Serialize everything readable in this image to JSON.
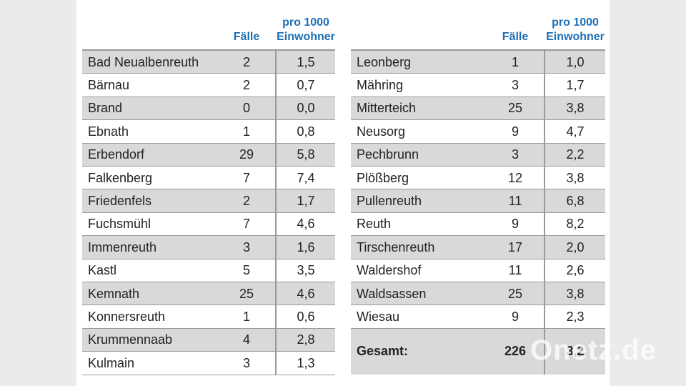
{
  "left_table": {
    "header": [
      "Fälle",
      "pro 1000",
      "Einwohner"
    ],
    "rows": [
      [
        "Bad Neualbenreuth",
        "2",
        "1,5"
      ],
      [
        "Bärnau",
        "2",
        "0,7"
      ],
      [
        "Brand",
        "0",
        "0,0"
      ],
      [
        "Ebnath",
        "1",
        "0,8"
      ],
      [
        "Erbendorf",
        "29",
        "5,8"
      ],
      [
        "Falkenberg",
        "7",
        "7,4"
      ],
      [
        "Friedenfels",
        "2",
        "1,7"
      ],
      [
        "Fuchsmühl",
        "7",
        "4,6"
      ],
      [
        "Immenreuth",
        "3",
        "1,6"
      ],
      [
        "Kastl",
        "5",
        "3,5"
      ],
      [
        "Kemnath",
        "25",
        "4,6"
      ],
      [
        "Konnersreuth",
        "1",
        "0,6"
      ],
      [
        "Krummennaab",
        "4",
        "2,8"
      ],
      [
        "Kulmain",
        "3",
        "1,3"
      ]
    ]
  },
  "right_table": {
    "header": [
      "Fälle",
      "pro 1000",
      "Einwohner"
    ],
    "rows": [
      [
        "Leonberg",
        "1",
        "1,0"
      ],
      [
        "Mähring",
        "3",
        "1,7"
      ],
      [
        "Mitterteich",
        "25",
        "3,8"
      ],
      [
        "Neusorg",
        "9",
        "4,7"
      ],
      [
        "Pechbrunn",
        "3",
        "2,2"
      ],
      [
        "Plößberg",
        "12",
        "3,8"
      ],
      [
        "Pullenreuth",
        "11",
        "6,8"
      ],
      [
        "Reuth",
        "9",
        "8,2"
      ],
      [
        "Tirschenreuth",
        "17",
        "2,0"
      ],
      [
        "Waldershof",
        "11",
        "2,6"
      ],
      [
        "Waldsassen",
        "25",
        "3,8"
      ],
      [
        "Wiesau",
        "9",
        "2,3"
      ]
    ],
    "total": [
      "Gesamt:",
      "226",
      "3,2"
    ]
  },
  "watermark": "Onetz.de"
}
